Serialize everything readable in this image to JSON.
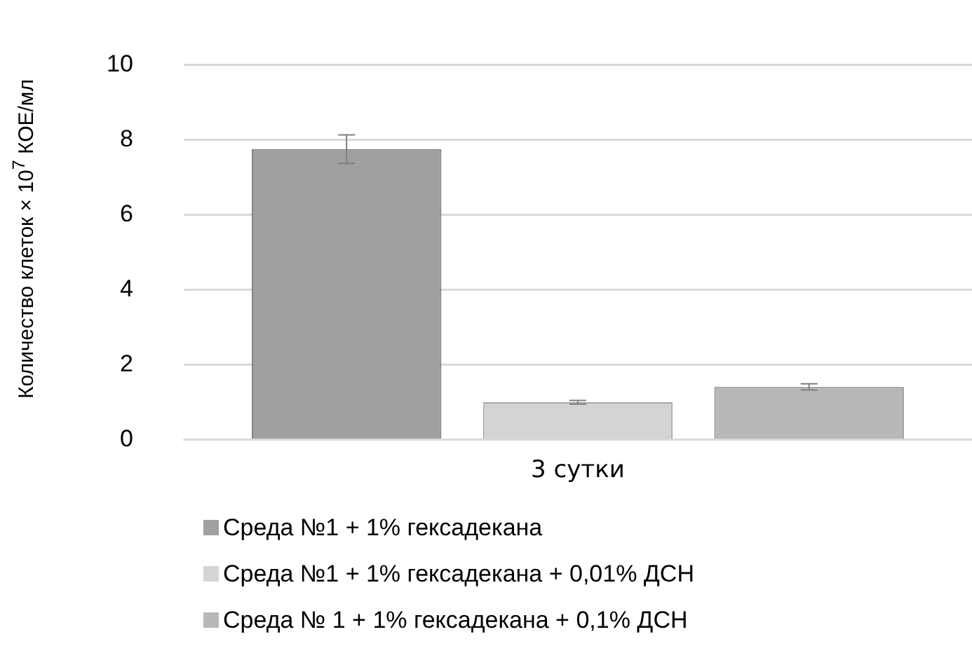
{
  "chart_data": {
    "type": "bar",
    "ylabel": "Количество клеток × 10$^{7}$ КОЕ/мл",
    "categories": [
      "3 сутки"
    ],
    "series": [
      {
        "name": "Среда №1 + 1% гексадекана",
        "color": "#a0a0a0",
        "values": [
          7.75
        ],
        "errors": [
          0.38
        ]
      },
      {
        "name": "Среда №1 + 1% гексадекана + 0,01% ДСН",
        "color": "#d4d4d4",
        "values": [
          1.0
        ],
        "errors": [
          0.05
        ]
      },
      {
        "name": "Среда № 1 + 1% гексадекана + 0,1% ДСН",
        "color": "#b8b8b8",
        "values": [
          1.41
        ],
        "errors": [
          0.08
        ]
      }
    ],
    "ylim": [
      0,
      10
    ],
    "yticks": [
      0,
      2,
      4,
      6,
      8,
      10
    ],
    "grid": "y",
    "legend": "bottom"
  }
}
